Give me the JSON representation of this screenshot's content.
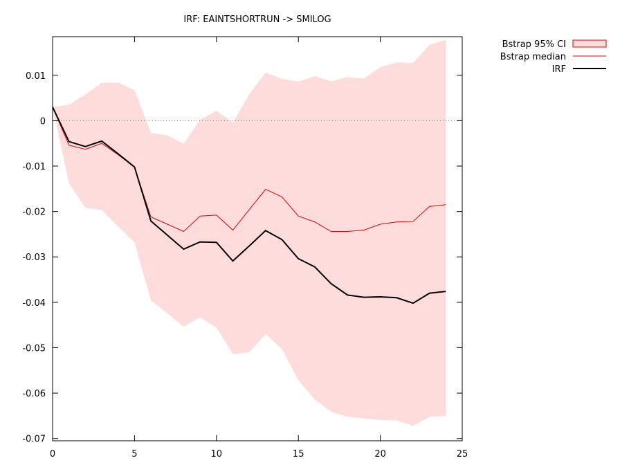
{
  "chart_data": {
    "type": "line",
    "title": "IRF: EAINTSHORTRUN -> SMILOG",
    "xlabel": "",
    "ylabel": "",
    "xlim": [
      0,
      25
    ],
    "ylim": [
      -0.0705,
      0.0185
    ],
    "x_ticks": [
      "0",
      "5",
      "10",
      "15",
      "20",
      "25"
    ],
    "y_ticks": [
      "0.01",
      "0",
      "-0.01",
      "-0.02",
      "-0.03",
      "-0.04",
      "-0.05",
      "-0.06",
      "-0.07"
    ],
    "grid": false,
    "zero_line": true,
    "legend_position": "top-right outside",
    "x": [
      0,
      1,
      2,
      3,
      4,
      5,
      6,
      7,
      8,
      9,
      10,
      11,
      12,
      13,
      14,
      15,
      16,
      17,
      18,
      19,
      20,
      21,
      22,
      23,
      24
    ],
    "series": [
      {
        "name": "Bstrap 95% CI",
        "kind": "band",
        "fill": "#ffdcdc",
        "stroke": "#e00000",
        "upper": [
          0.003,
          0.0035,
          0.0058,
          0.0083,
          0.0084,
          0.0067,
          -0.0027,
          -0.0032,
          -0.0051,
          0.0002,
          0.0022,
          -0.0005,
          0.0058,
          0.0106,
          0.0092,
          0.0086,
          0.0098,
          0.0087,
          0.0096,
          0.0093,
          0.0118,
          0.0128,
          0.0127,
          0.0167,
          0.0178
        ],
        "lower": [
          0.003,
          -0.0138,
          -0.0192,
          -0.0197,
          -0.0233,
          -0.0268,
          -0.0396,
          -0.0424,
          -0.0454,
          -0.0433,
          -0.0456,
          -0.0514,
          -0.051,
          -0.047,
          -0.0503,
          -0.0572,
          -0.0614,
          -0.0641,
          -0.0652,
          -0.0656,
          -0.0659,
          -0.066,
          -0.0672,
          -0.0652,
          -0.065
        ]
      },
      {
        "name": "Bstrap median",
        "kind": "line",
        "color": "#e00000",
        "values": [
          0.003,
          -0.0054,
          -0.0063,
          -0.005,
          -0.0075,
          -0.0103,
          -0.0212,
          -0.0228,
          -0.0244,
          -0.021,
          -0.0208,
          -0.0241,
          -0.0196,
          -0.0151,
          -0.0168,
          -0.021,
          -0.0223,
          -0.0244,
          -0.0244,
          -0.0241,
          -0.0228,
          -0.0223,
          -0.0222,
          -0.0189,
          -0.0185
        ]
      },
      {
        "name": "IRF",
        "kind": "line",
        "color": "#000000",
        "values": [
          0.003,
          -0.0046,
          -0.0057,
          -0.0045,
          -0.0073,
          -0.0102,
          -0.0221,
          -0.0252,
          -0.0283,
          -0.0267,
          -0.0268,
          -0.0309,
          -0.0276,
          -0.0242,
          -0.0262,
          -0.0304,
          -0.0322,
          -0.0359,
          -0.0384,
          -0.0389,
          -0.0388,
          -0.039,
          -0.0402,
          -0.038,
          -0.0376
        ]
      }
    ]
  }
}
